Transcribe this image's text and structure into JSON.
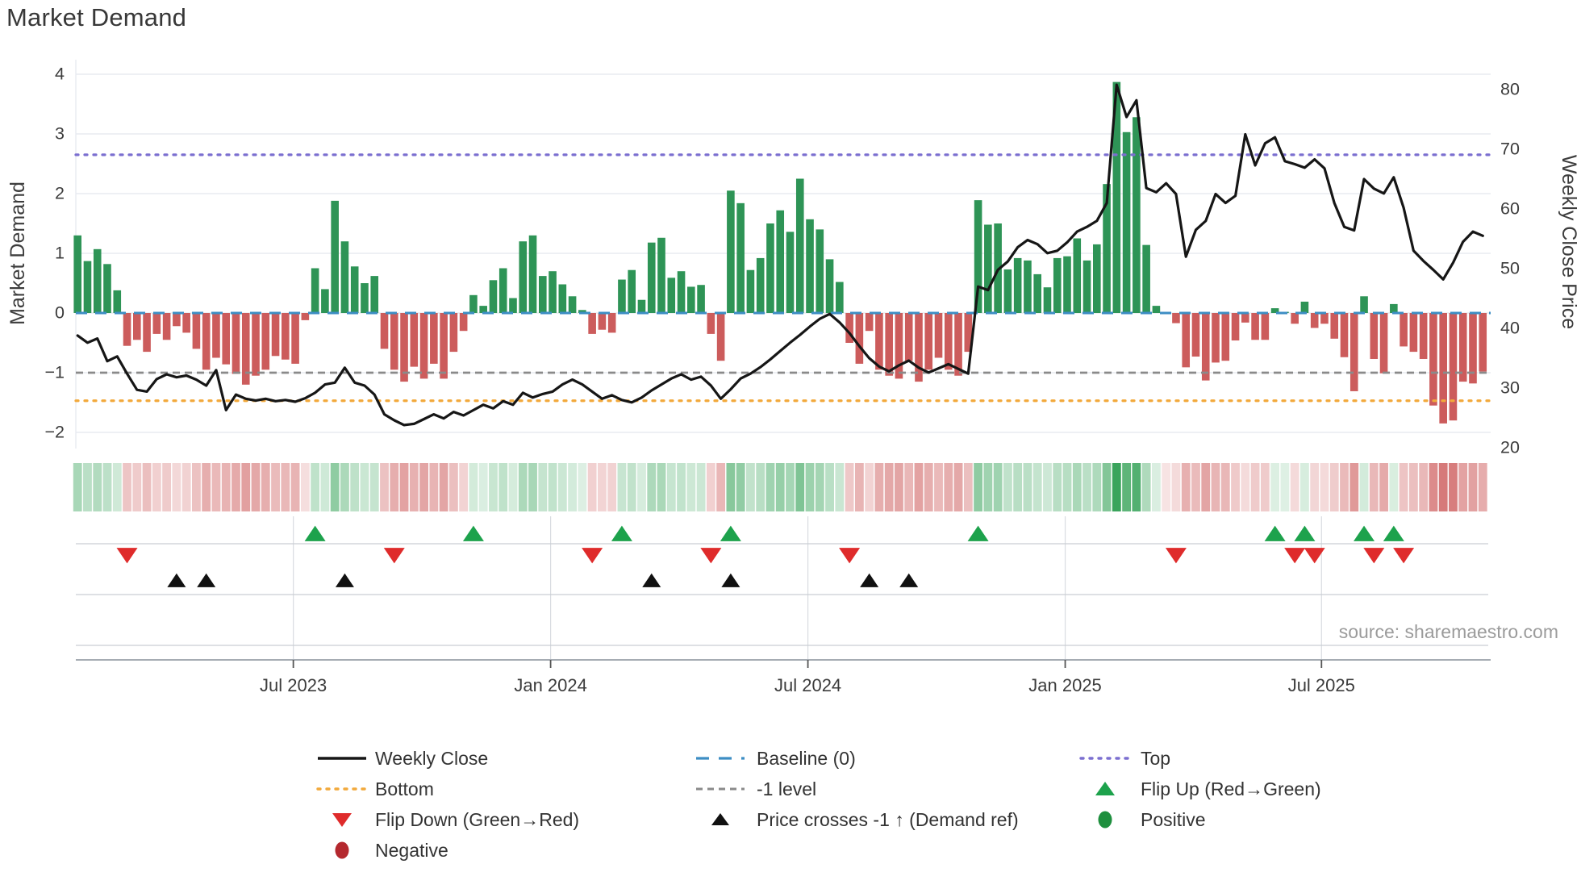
{
  "title": "Market Demand",
  "source": "source: sharemaestro.com",
  "axes": {
    "left_label": "Market Demand",
    "right_label": "Weekly Close Price",
    "left_ticks": [
      4,
      3,
      2,
      1,
      0,
      -1,
      -2
    ],
    "right_ticks": [
      80,
      70,
      60,
      50,
      40,
      30,
      20
    ],
    "x_tick_labels": [
      "Jul 2023",
      "Jan 2024",
      "Jul 2024",
      "Jan 2025",
      "Jul 2025"
    ],
    "x_tick_weeks": [
      21.8,
      47.8,
      73.8,
      99.8,
      125.7
    ]
  },
  "chart_data": {
    "type": "bar",
    "subtype": "weekly bar + line overlay + heatmap strip + event markers",
    "n_weeks": 143,
    "title": "Market Demand",
    "xlabel": "",
    "ylabel_left": "Market Demand",
    "ylabel_right": "Weekly Close Price",
    "ylim_left": [
      -2.3,
      4.25
    ],
    "ylim_right": [
      19.5,
      82.5
    ],
    "grid": true,
    "legend_position": "bottom",
    "levels": {
      "baseline": 0,
      "top": 2.65,
      "bottom": -1.47,
      "minus_one": -1
    },
    "series": [
      {
        "name": "Market Demand",
        "type": "bar",
        "values": [
          1.3,
          0.87,
          1.07,
          0.82,
          0.38,
          -0.55,
          -0.45,
          -0.65,
          -0.35,
          -0.45,
          -0.22,
          -0.33,
          -0.6,
          -0.95,
          -0.75,
          -0.86,
          -1.02,
          -1.2,
          -1.05,
          -0.95,
          -0.72,
          -0.78,
          -0.85,
          -0.12,
          0.75,
          0.4,
          1.88,
          1.2,
          0.78,
          0.5,
          0.62,
          -0.6,
          -0.95,
          -1.15,
          -0.9,
          -1.1,
          -0.85,
          -1.1,
          -0.65,
          -0.3,
          0.3,
          0.12,
          0.55,
          0.75,
          0.25,
          1.2,
          1.3,
          0.62,
          0.7,
          0.48,
          0.28,
          0.05,
          -0.35,
          -0.28,
          -0.33,
          0.56,
          0.72,
          0.22,
          1.18,
          1.26,
          0.59,
          0.7,
          0.44,
          0.47,
          -0.35,
          -0.8,
          2.05,
          1.84,
          0.72,
          0.92,
          1.5,
          1.72,
          1.36,
          2.25,
          1.57,
          1.4,
          0.9,
          0.52,
          -0.5,
          -0.85,
          -0.3,
          -0.95,
          -1.05,
          -1.1,
          -0.8,
          -1.15,
          -0.95,
          -0.75,
          -0.95,
          -1.05,
          -0.65,
          1.89,
          1.48,
          1.5,
          0.73,
          0.92,
          0.88,
          0.65,
          0.43,
          0.92,
          0.95,
          1.25,
          0.88,
          1.15,
          2.16,
          3.87,
          3.03,
          3.28,
          1.14,
          0.12,
          -0.02,
          -0.17,
          -0.91,
          -0.73,
          -1.13,
          -0.83,
          -0.8,
          -0.46,
          -0.16,
          -0.45,
          -0.45,
          0.08,
          0.02,
          -0.18,
          0.19,
          -0.25,
          -0.18,
          -0.43,
          -0.74,
          -1.31,
          0.28,
          -0.77,
          -1.01,
          0.15,
          -0.56,
          -0.65,
          -0.77,
          -1.55,
          -1.85,
          -1.8,
          -1.15,
          -1.18,
          -0.98
        ]
      },
      {
        "name": "Weekly Close",
        "type": "line",
        "values": [
          38.8,
          37.6,
          38.3,
          34.5,
          35.3,
          32.4,
          29.7,
          29.4,
          31.5,
          32.3,
          31.8,
          32.1,
          31.4,
          30.4,
          33.0,
          26.3,
          28.9,
          28.2,
          27.9,
          28.2,
          27.8,
          28.0,
          27.7,
          28.3,
          29.2,
          30.6,
          30.9,
          33.4,
          30.9,
          30.4,
          28.9,
          25.6,
          24.6,
          23.8,
          24.0,
          24.8,
          25.6,
          24.9,
          26.0,
          25.4,
          26.3,
          27.2,
          26.6,
          27.8,
          27.2,
          29.2,
          28.4,
          29.0,
          29.4,
          30.6,
          31.4,
          30.6,
          29.4,
          28.2,
          28.8,
          28.0,
          27.6,
          28.4,
          29.6,
          30.6,
          31.6,
          32.3,
          31.4,
          31.9,
          30.4,
          28.2,
          29.8,
          31.6,
          32.4,
          33.5,
          34.8,
          36.2,
          37.6,
          38.9,
          40.3,
          41.6,
          42.4,
          41.0,
          39.2,
          37.0,
          35.0,
          33.6,
          32.8,
          33.8,
          34.6,
          33.4,
          32.6,
          33.3,
          34.0,
          33.2,
          32.4,
          47.0,
          46.4,
          49.8,
          51.2,
          53.6,
          54.8,
          54.1,
          52.6,
          53.0,
          54.4,
          56.2,
          57.0,
          58.0,
          61.0,
          80.8,
          75.4,
          78.2,
          63.5,
          62.8,
          64.3,
          62.5,
          52.0,
          56.5,
          58.0,
          62.5,
          61.0,
          62.2,
          72.5,
          67.3,
          71.0,
          72.0,
          68.0,
          67.5,
          66.9,
          68.3,
          66.8,
          61.0,
          57.0,
          56.4,
          65.0,
          63.4,
          62.6,
          65.3,
          60.2,
          53.0,
          51.3,
          49.8,
          48.2,
          51.0,
          54.5,
          56.2,
          55.5
        ]
      }
    ],
    "heatmap": {
      "note": "strip below chart, one cell per week, shade = sign and magnitude of Market Demand"
    },
    "markers": {
      "flip_up_weeks": [
        24,
        40,
        55,
        66,
        91,
        121,
        124,
        130,
        133
      ],
      "flip_down_weeks": [
        5,
        32,
        52,
        64,
        78,
        111,
        123,
        125,
        131,
        134
      ],
      "price_cross_weeks": [
        10,
        13,
        27,
        58,
        66,
        80,
        84
      ]
    }
  },
  "legend": {
    "items": [
      {
        "swatch": "line-solid-black",
        "label": "Weekly Close",
        "col": 0,
        "row": 0
      },
      {
        "swatch": "dash-blue",
        "label": "Baseline (0)",
        "col": 1,
        "row": 0
      },
      {
        "swatch": "dot-purple",
        "label": "Top",
        "col": 2,
        "row": 0
      },
      {
        "swatch": "dot-orange",
        "label": "Bottom",
        "col": 0,
        "row": 1
      },
      {
        "swatch": "dash-gray",
        "label": "-1 level",
        "col": 1,
        "row": 1
      },
      {
        "swatch": "tri-up-green",
        "label": "Flip Up (Red→Green)",
        "col": 2,
        "row": 1
      },
      {
        "swatch": "tri-down-red",
        "label": "Flip Down (Green→Red)",
        "col": 0,
        "row": 2
      },
      {
        "swatch": "tri-up-black",
        "label": "Price crosses -1 ↑ (Demand ref)",
        "col": 1,
        "row": 2
      },
      {
        "swatch": "circle-green",
        "label": "Positive",
        "col": 2,
        "row": 2
      },
      {
        "swatch": "circle-darkred",
        "label": "Negative",
        "col": 0,
        "row": 3
      }
    ]
  },
  "colors": {
    "bar_positive": "#2e9456",
    "bar_negative": "#cc5c5c",
    "heat_positive_full": "#2c9e50",
    "heat_negative_full": "#c94f4f",
    "price_line": "#161616",
    "baseline": "#3d8ec4",
    "top_line": "#7b6fd0",
    "bottom_line": "#f2a93b",
    "minus_one_line": "#8a8a8a",
    "flip_up": "#1da24c",
    "flip_down": "#df2b2b",
    "price_cross": "#111111",
    "positive_dot": "#1e8f3e",
    "negative_dot": "#b4282e",
    "grid": "#e8ebf1",
    "band_line": "#c9cdd3",
    "band_vline": "#d9dce1",
    "spine": "#9aa0a8",
    "text": "#3a3a3a",
    "tick_text": "#3c3c3c",
    "source_text": "#9b9b9b"
  }
}
